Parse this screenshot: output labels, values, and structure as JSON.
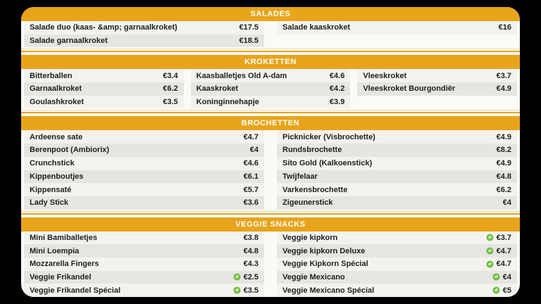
{
  "menu": {
    "background": "#000000",
    "card_background": "#fbfaf7",
    "accent": "#e8a41b",
    "header_text_color": "#ffffff",
    "row_stripe_light": "#f3f2ef",
    "row_stripe_dark": "#e7e5e2",
    "item_text_color": "#201f1d",
    "veg_icon_name": "vegetarian-icon",
    "veg_icon_color": "#72bf44",
    "sections": [
      {
        "title": "SALADES",
        "columns": [
          {
            "items": [
              {
                "name": "Salade duo (kaas- &amp; garnaalkroket)",
                "price": "€17.5"
              },
              {
                "name": "Salade garnaalkroket",
                "price": "€18.5"
              }
            ]
          },
          {
            "items": [
              {
                "name": "Salade kaaskroket",
                "price": "€16"
              }
            ]
          }
        ],
        "max_rows": 2
      },
      {
        "title": "KROKETTEN",
        "columns": [
          {
            "items": [
              {
                "name": "Bitterballen",
                "price": "€3.4"
              },
              {
                "name": "Garnaalkroket",
                "price": "€6.2"
              },
              {
                "name": "Goulashkroket",
                "price": "€3.5"
              }
            ]
          },
          {
            "items": [
              {
                "name": "Kaasballetjes Old A-dam",
                "price": "€4.6"
              },
              {
                "name": "Kaaskroket",
                "price": "€4.2"
              },
              {
                "name": "Koninginnehapje",
                "price": "€3.9"
              }
            ]
          },
          {
            "items": [
              {
                "name": "Vleeskroket",
                "price": "€3.7"
              },
              {
                "name": "Vleeskroket Bourgondiër",
                "price": "€4.9"
              }
            ]
          }
        ],
        "max_rows": 3
      },
      {
        "title": "BROCHETTEN",
        "columns": [
          {
            "items": [
              {
                "name": "Ardeense sate",
                "price": "€4.7"
              },
              {
                "name": "Berenpoot (Ambiorix)",
                "price": "€4"
              },
              {
                "name": "Crunchstick",
                "price": "€4.6"
              },
              {
                "name": "Kippenboutjes",
                "price": "€6.1"
              },
              {
                "name": "Kippensaté",
                "price": "€5.7"
              },
              {
                "name": "Lady Stick",
                "price": "€3.6"
              }
            ]
          },
          {
            "items": [
              {
                "name": "Picknicker (Visbrochette)",
                "price": "€4.9"
              },
              {
                "name": "Rundsbrochette",
                "price": "€8.2"
              },
              {
                "name": "Sito Gold (Kalkoenstick)",
                "price": "€4.9"
              },
              {
                "name": "Twijfelaar",
                "price": "€4.8"
              },
              {
                "name": "Varkensbrochette",
                "price": "€6.2"
              },
              {
                "name": "Zigeunerstick",
                "price": "€4"
              }
            ]
          }
        ],
        "max_rows": 6
      },
      {
        "title": "VEGGIE SNACKS",
        "columns": [
          {
            "items": [
              {
                "name": "Mini Bamiballetjes",
                "price": "€3.8"
              },
              {
                "name": "Mini Loempia",
                "price": "€4.8"
              },
              {
                "name": "Mozzarella Fingers",
                "price": "€4.3"
              },
              {
                "name": "Veggie Frikandel",
                "price": "€2.5",
                "veg": true
              },
              {
                "name": "Veggie Frikandel Spécial",
                "price": "€3.5",
                "veg": true
              }
            ]
          },
          {
            "items": [
              {
                "name": "Veggie kipkorn",
                "price": "€3.7",
                "veg": true
              },
              {
                "name": "Veggie kipkorn Deluxe",
                "price": "€4.7",
                "veg": true
              },
              {
                "name": "Veggie Kipkorn Spécial",
                "price": "€4.7",
                "veg": true
              },
              {
                "name": "Veggie Mexicano",
                "price": "€4",
                "veg": true
              },
              {
                "name": "Veggie Mexicano Spécial",
                "price": "€5",
                "veg": true
              }
            ]
          }
        ],
        "max_rows": 5
      }
    ]
  }
}
